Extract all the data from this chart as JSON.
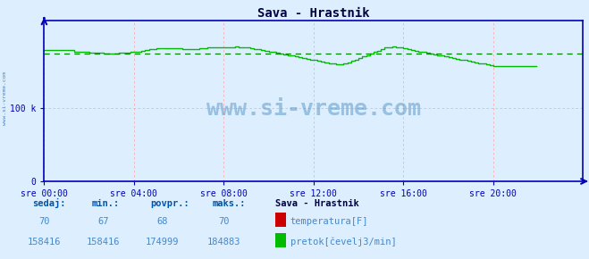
{
  "title": "Sava - Hrastnik",
  "bg_color": "#ddeeff",
  "plot_bg_color": "#ddeeff",
  "grid_color": "#ffaaaa",
  "x_tick_labels": [
    "sre 00:00",
    "sre 04:00",
    "sre 08:00",
    "sre 12:00",
    "sre 16:00",
    "sre 20:00"
  ],
  "x_tick_positions": [
    0,
    48,
    96,
    144,
    192,
    240
  ],
  "y_ticks": [
    0,
    100000
  ],
  "y_tick_labels": [
    "0",
    "100 k"
  ],
  "ylim": [
    0,
    220000
  ],
  "xlim": [
    0,
    288
  ],
  "pretok_min": 158416,
  "pretok_max": 184883,
  "pretok_avg": 174999,
  "pretok_cur": 158416,
  "temp_min": 67,
  "temp_max": 70,
  "temp_avg": 68,
  "temp_cur": 70,
  "green_color": "#00bb00",
  "red_color": "#cc0000",
  "dashed_line_color": "#008800",
  "watermark_color": "#4488bb",
  "axis_color": "#0000bb",
  "tick_color": "#0000bb",
  "title_color": "#000044",
  "bottom_bold_color": "#0055aa",
  "bottom_value_color": "#4488cc",
  "legend_title_color": "#000044",
  "sidebar_color": "#4488cc",
  "flow_data": [
    180000,
    180000,
    180000,
    180000,
    180000,
    180000,
    180000,
    180000,
    180000,
    180000,
    180000,
    180000,
    180000,
    180000,
    180000,
    180000,
    178000,
    178000,
    178000,
    178000,
    178000,
    178000,
    178000,
    178000,
    176000,
    176000,
    176000,
    176000,
    176000,
    176000,
    176000,
    176000,
    175000,
    175000,
    175000,
    175000,
    175000,
    175000,
    175000,
    175000,
    176000,
    176000,
    176000,
    176000,
    176000,
    176000,
    177000,
    177000,
    178000,
    178000,
    178000,
    178000,
    179000,
    179000,
    180000,
    180000,
    181000,
    181000,
    181000,
    181000,
    182000,
    182000,
    182000,
    182000,
    182000,
    182000,
    182000,
    182000,
    182000,
    182000,
    182000,
    182000,
    182000,
    182000,
    181000,
    181000,
    181000,
    181000,
    181000,
    181000,
    181000,
    181000,
    181000,
    182000,
    182000,
    182000,
    182000,
    183000,
    183000,
    183000,
    183000,
    183000,
    183000,
    183000,
    183000,
    183000,
    184000,
    184000,
    184000,
    184000,
    184000,
    184000,
    184883,
    184883,
    184000,
    184000,
    184000,
    184000,
    183000,
    183000,
    182000,
    182000,
    181000,
    181000,
    181000,
    181000,
    180000,
    180000,
    179000,
    179000,
    178000,
    178000,
    177000,
    177000,
    176000,
    176000,
    175000,
    175000,
    174000,
    174000,
    173000,
    173000,
    172000,
    172000,
    171000,
    171000,
    170000,
    170000,
    169000,
    169000,
    168000,
    168000,
    167000,
    167000,
    166000,
    166000,
    165000,
    165000,
    164000,
    164000,
    163000,
    163000,
    162000,
    162000,
    161000,
    161000,
    160000,
    160000,
    160000,
    160000,
    161000,
    161000,
    163000,
    163000,
    165000,
    165000,
    167000,
    167000,
    169000,
    169000,
    171000,
    171000,
    173000,
    173000,
    175000,
    175000,
    177000,
    177000,
    179000,
    179000,
    181000,
    181000,
    183000,
    183000,
    184000,
    184000,
    184883,
    184883,
    184000,
    184000,
    183000,
    183000,
    182000,
    182000,
    181000,
    181000,
    180000,
    180000,
    179000,
    179000,
    178000,
    178000,
    177000,
    177000,
    176000,
    176000,
    175000,
    175000,
    174000,
    174000,
    173000,
    173000,
    172000,
    172000,
    171000,
    171000,
    170000,
    170000,
    169000,
    169000,
    168000,
    168000,
    167000,
    167000,
    166000,
    166000,
    165000,
    165000,
    164000,
    164000,
    163000,
    163000,
    162000,
    162000,
    161000,
    161000,
    160000,
    160000,
    159000,
    159000,
    158416,
    158416,
    158416,
    158416,
    158416,
    158416,
    158416,
    158416,
    158416,
    158416,
    158416,
    158416,
    158416,
    158416,
    158416,
    158416,
    158416,
    158416,
    158416,
    158416,
    158416,
    158416,
    158416,
    158416
  ]
}
